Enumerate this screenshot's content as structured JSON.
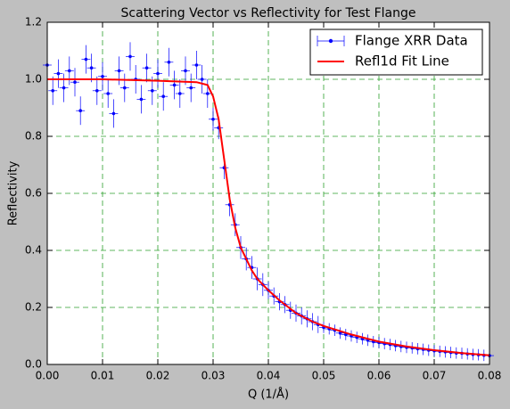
{
  "chart_data": {
    "type": "scatter",
    "title": "Scattering Vector vs Reflectivity for Test Flange",
    "xlabel": "Q (1/Å)",
    "ylabel": "Reflectivity",
    "xlim": [
      0,
      0.08
    ],
    "ylim": [
      0,
      1.2
    ],
    "xticks": [
      {
        "value": 0,
        "label": "0.00"
      },
      {
        "value": 0.01,
        "label": "0.01"
      },
      {
        "value": 0.02,
        "label": "0.02"
      },
      {
        "value": 0.03,
        "label": "0.03"
      },
      {
        "value": 0.04,
        "label": "0.04"
      },
      {
        "value": 0.05,
        "label": "0.05"
      },
      {
        "value": 0.06,
        "label": "0.06"
      },
      {
        "value": 0.07,
        "label": "0.07"
      },
      {
        "value": 0.08,
        "label": "0.08"
      }
    ],
    "yticks": [
      {
        "value": 0,
        "label": "0.0"
      },
      {
        "value": 0.2,
        "label": "0.2"
      },
      {
        "value": 0.4,
        "label": "0.4"
      },
      {
        "value": 0.6,
        "label": "0.6"
      },
      {
        "value": 0.8,
        "label": "0.8"
      },
      {
        "value": 1.0,
        "label": "1.0"
      },
      {
        "value": 1.2,
        "label": "1.2"
      }
    ],
    "grid": true,
    "legend": "upper right",
    "series": [
      {
        "name": "Flange XRR Data",
        "type": "errorbar",
        "color": "#0000ff",
        "x": [
          0.0,
          0.001,
          0.002,
          0.003,
          0.004,
          0.005,
          0.006,
          0.007,
          0.008,
          0.009,
          0.01,
          0.011,
          0.012,
          0.013,
          0.014,
          0.015,
          0.016,
          0.017,
          0.018,
          0.019,
          0.02,
          0.021,
          0.022,
          0.023,
          0.024,
          0.025,
          0.026,
          0.027,
          0.028,
          0.029,
          0.03,
          0.031,
          0.032,
          0.033,
          0.034,
          0.035,
          0.036,
          0.037,
          0.038,
          0.039,
          0.04,
          0.041,
          0.042,
          0.043,
          0.044,
          0.045,
          0.046,
          0.047,
          0.048,
          0.049,
          0.05,
          0.051,
          0.052,
          0.053,
          0.054,
          0.055,
          0.056,
          0.057,
          0.058,
          0.059,
          0.06,
          0.061,
          0.062,
          0.063,
          0.064,
          0.065,
          0.066,
          0.067,
          0.068,
          0.069,
          0.07,
          0.071,
          0.072,
          0.073,
          0.074,
          0.075,
          0.076,
          0.077,
          0.078,
          0.079,
          0.08
        ],
        "values": [
          1.05,
          0.96,
          1.02,
          0.97,
          1.03,
          0.99,
          0.89,
          1.07,
          1.04,
          0.96,
          1.01,
          0.95,
          0.88,
          1.03,
          0.97,
          1.08,
          1.0,
          0.93,
          1.04,
          0.96,
          1.02,
          0.94,
          1.06,
          0.98,
          0.95,
          1.03,
          0.97,
          1.05,
          1.0,
          0.95,
          0.86,
          0.83,
          0.69,
          0.56,
          0.49,
          0.41,
          0.37,
          0.34,
          0.3,
          0.28,
          0.26,
          0.24,
          0.22,
          0.21,
          0.19,
          0.18,
          0.17,
          0.16,
          0.15,
          0.14,
          0.13,
          0.125,
          0.12,
          0.11,
          0.105,
          0.1,
          0.095,
          0.09,
          0.085,
          0.08,
          0.077,
          0.073,
          0.07,
          0.066,
          0.063,
          0.06,
          0.058,
          0.055,
          0.053,
          0.05,
          0.048,
          0.046,
          0.044,
          0.042,
          0.04,
          0.039,
          0.037,
          0.035,
          0.034,
          0.032,
          0.031
        ],
        "yerr": [
          0.05,
          0.05,
          0.05,
          0.05,
          0.05,
          0.05,
          0.05,
          0.05,
          0.05,
          0.05,
          0.05,
          0.05,
          0.05,
          0.05,
          0.05,
          0.05,
          0.05,
          0.05,
          0.05,
          0.05,
          0.05,
          0.05,
          0.05,
          0.05,
          0.05,
          0.05,
          0.05,
          0.05,
          0.05,
          0.05,
          0.04,
          0.04,
          0.04,
          0.04,
          0.04,
          0.04,
          0.04,
          0.04,
          0.04,
          0.04,
          0.03,
          0.03,
          0.03,
          0.03,
          0.03,
          0.03,
          0.03,
          0.03,
          0.03,
          0.03,
          0.02,
          0.02,
          0.02,
          0.02,
          0.02,
          0.02,
          0.02,
          0.02,
          0.02,
          0.02,
          0.02,
          0.02,
          0.02,
          0.02,
          0.02,
          0.02,
          0.02,
          0.02,
          0.02,
          0.02,
          0.02,
          0.02,
          0.02,
          0.02,
          0.02,
          0.02,
          0.02,
          0.02,
          0.02,
          0.02,
          0.02
        ],
        "xerr": 0.0008
      },
      {
        "name": "Refl1d Fit Line",
        "type": "line",
        "color": "#ff0000",
        "x": [
          0,
          0.01,
          0.02,
          0.027,
          0.029,
          0.03,
          0.031,
          0.032,
          0.033,
          0.034,
          0.035,
          0.036,
          0.037,
          0.038,
          0.039,
          0.04,
          0.042,
          0.045,
          0.048,
          0.05,
          0.055,
          0.06,
          0.065,
          0.07,
          0.075,
          0.08
        ],
        "values": [
          1.0,
          1.0,
          0.995,
          0.99,
          0.98,
          0.94,
          0.86,
          0.72,
          0.58,
          0.48,
          0.41,
          0.37,
          0.33,
          0.3,
          0.28,
          0.26,
          0.225,
          0.18,
          0.15,
          0.135,
          0.105,
          0.08,
          0.063,
          0.05,
          0.04,
          0.032
        ]
      }
    ]
  }
}
